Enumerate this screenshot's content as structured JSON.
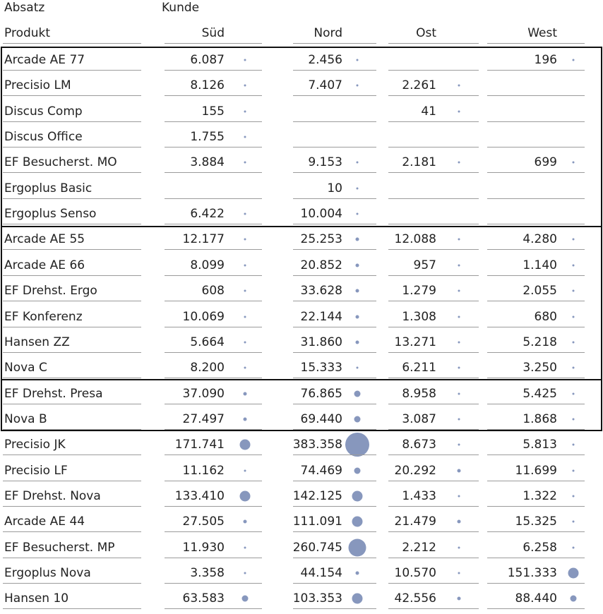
{
  "header": {
    "measure": "Absatz",
    "dimension": "Kunde",
    "row_label": "Produkt",
    "regions": [
      "Süd",
      "Nord",
      "Ost",
      "West"
    ]
  },
  "accent_color": "#8797bd",
  "rows": [
    {
      "product": "Arcade AE 77",
      "values": [
        "6.087",
        "2.456",
        "",
        "196"
      ]
    },
    {
      "product": "Precisio LM",
      "values": [
        "8.126",
        "7.407",
        "2.261",
        ""
      ]
    },
    {
      "product": "Discus Comp",
      "values": [
        "155",
        "",
        "41",
        ""
      ]
    },
    {
      "product": "Discus Office",
      "values": [
        "1.755",
        "",
        "",
        ""
      ]
    },
    {
      "product": "EF Besucherst. MO",
      "values": [
        "3.884",
        "9.153",
        "2.181",
        "699"
      ]
    },
    {
      "product": "Ergoplus Basic",
      "values": [
        "",
        "10",
        "",
        ""
      ]
    },
    {
      "product": "Ergoplus Senso",
      "values": [
        "6.422",
        "10.004",
        "",
        ""
      ]
    },
    {
      "product": "Arcade AE 55",
      "values": [
        "12.177",
        "25.253",
        "12.088",
        "4.280"
      ]
    },
    {
      "product": "Arcade AE 66",
      "values": [
        "8.099",
        "20.852",
        "957",
        "1.140"
      ]
    },
    {
      "product": "EF Drehst. Ergo",
      "values": [
        "608",
        "33.628",
        "1.279",
        "2.055"
      ]
    },
    {
      "product": "EF Konferenz",
      "values": [
        "10.069",
        "22.144",
        "1.308",
        "680"
      ]
    },
    {
      "product": "Hansen ZZ",
      "values": [
        "5.664",
        "31.860",
        "13.271",
        "5.218"
      ]
    },
    {
      "product": "Nova C",
      "values": [
        "8.200",
        "15.333",
        "6.211",
        "3.250"
      ]
    },
    {
      "product": "EF Drehst. Presa",
      "values": [
        "37.090",
        "76.865",
        "8.958",
        "5.425"
      ]
    },
    {
      "product": "Nova B",
      "values": [
        "27.497",
        "69.440",
        "3.087",
        "1.868"
      ]
    },
    {
      "product": "Precisio JK",
      "values": [
        "171.741",
        "383.358",
        "8.673",
        "5.813"
      ]
    },
    {
      "product": "Precisio LF",
      "values": [
        "11.162",
        "74.469",
        "20.292",
        "11.699"
      ]
    },
    {
      "product": "EF Drehst. Nova",
      "values": [
        "133.410",
        "142.125",
        "1.433",
        "1.322"
      ]
    },
    {
      "product": "Arcade AE 44",
      "values": [
        "27.505",
        "111.091",
        "21.479",
        "15.325"
      ]
    },
    {
      "product": "EF Besucherst. MP",
      "values": [
        "11.930",
        "260.745",
        "2.212",
        "6.258"
      ]
    },
    {
      "product": "Ergoplus Nova",
      "values": [
        "3.358",
        "44.154",
        "10.570",
        "151.333"
      ]
    },
    {
      "product": "Hansen 10",
      "values": [
        "63.583",
        "103.353",
        "42.556",
        "88.440"
      ]
    }
  ]
}
